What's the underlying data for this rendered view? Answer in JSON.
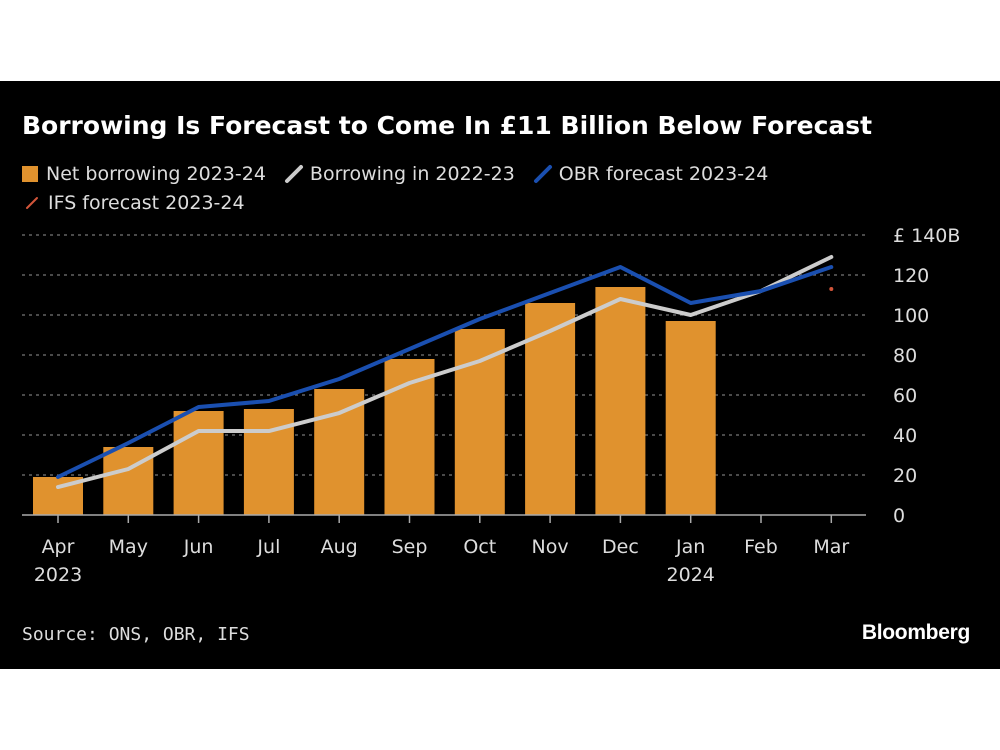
{
  "chart_data": {
    "type": "bar",
    "title": "Borrowing Is Forecast to Come In £11 Billion Below Forecast",
    "categories": [
      "Apr",
      "May",
      "Jun",
      "Jul",
      "Aug",
      "Sep",
      "Oct",
      "Nov",
      "Dec",
      "Jan",
      "Feb",
      "Mar"
    ],
    "category_sublabels": [
      "2023",
      "",
      "",
      "",
      "",
      "",
      "",
      "",
      "",
      "2024",
      "",
      ""
    ],
    "series": [
      {
        "name": "Net borrowing 2023-24",
        "kind": "bar",
        "values": [
          19,
          34,
          52,
          53,
          63,
          78,
          93,
          106,
          114,
          97,
          null,
          null
        ]
      },
      {
        "name": "Borrowing in 2022-23",
        "kind": "line",
        "values": [
          14,
          23,
          42,
          42,
          51,
          66,
          77,
          92,
          108,
          100,
          112,
          129
        ]
      },
      {
        "name": "OBR forecast 2023-24",
        "kind": "line",
        "values": [
          19,
          36,
          54,
          57,
          68,
          83,
          98,
          111,
          124,
          106,
          112,
          124
        ]
      },
      {
        "name": "IFS forecast 2023-24",
        "kind": "point",
        "values": [
          null,
          null,
          null,
          null,
          null,
          null,
          null,
          null,
          null,
          null,
          null,
          113
        ]
      }
    ],
    "yticks": [
      0,
      20,
      40,
      60,
      80,
      100,
      120,
      140
    ],
    "ytick_labels": [
      "0",
      "20",
      "40",
      "60",
      "80",
      "100",
      "120",
      "£ 140B"
    ],
    "ylim": [
      0,
      140
    ],
    "grid": true,
    "legend_position": "top-left",
    "colors": {
      "bar": "#e0922e",
      "prev_year": "#cccccc",
      "obr": "#1a4fb0",
      "ifs": "#d2553a",
      "grid": "#777777",
      "axis": "#aaaaaa",
      "text": "#dddddd"
    }
  },
  "footer": {
    "source": "Source: ONS, OBR, IFS",
    "logo": "Bloomberg"
  }
}
